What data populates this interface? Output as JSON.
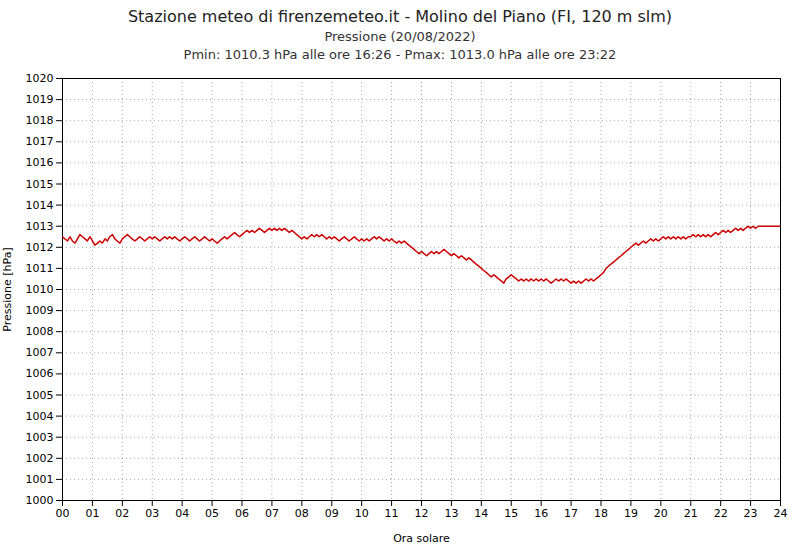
{
  "chart_data": {
    "type": "line",
    "title": "Stazione meteo di firenzemeteo.it - Molino del Piano (FI, 120 m slm)",
    "subtitle": "Pressione (20/08/2022)\nPmin: 1010.3 hPa alle ore 16:26 - Pmax: 1013.0 hPa alle ore 23:22",
    "x_label": "Ora solare",
    "y_label": "Pressione [hPa]",
    "xlim": [
      0,
      24
    ],
    "ylim": [
      1000,
      1020
    ],
    "xticks": [
      {
        "value": 0,
        "label": "00"
      },
      {
        "value": 1,
        "label": "01"
      },
      {
        "value": 2,
        "label": "02"
      },
      {
        "value": 3,
        "label": "03"
      },
      {
        "value": 4,
        "label": "04"
      },
      {
        "value": 5,
        "label": "05"
      },
      {
        "value": 6,
        "label": "06"
      },
      {
        "value": 7,
        "label": "07"
      },
      {
        "value": 8,
        "label": "08"
      },
      {
        "value": 9,
        "label": "09"
      },
      10,
      11,
      12,
      13,
      14,
      15,
      16,
      17,
      18,
      19,
      20,
      21,
      22,
      23,
      24
    ],
    "yticks": [
      1000,
      1001,
      1002,
      1003,
      1004,
      1005,
      1006,
      1007,
      1008,
      1009,
      1010,
      1011,
      1012,
      1013,
      1014,
      1015,
      1016,
      1017,
      1018,
      1019,
      1020
    ],
    "grid": true,
    "color": "#cc0000",
    "x": [
      0.0,
      0.08,
      0.17,
      0.25,
      0.33,
      0.42,
      0.5,
      0.58,
      0.67,
      0.75,
      0.83,
      0.92,
      1.0,
      1.08,
      1.17,
      1.25,
      1.33,
      1.42,
      1.5,
      1.58,
      1.67,
      1.75,
      1.83,
      1.92,
      2.0,
      2.08,
      2.17,
      2.25,
      2.33,
      2.42,
      2.5,
      2.58,
      2.67,
      2.75,
      2.83,
      2.92,
      3.0,
      3.08,
      3.17,
      3.25,
      3.33,
      3.42,
      3.5,
      3.58,
      3.67,
      3.75,
      3.83,
      3.92,
      4.0,
      4.08,
      4.17,
      4.25,
      4.33,
      4.42,
      4.5,
      4.58,
      4.67,
      4.75,
      4.83,
      4.92,
      5.0,
      5.08,
      5.17,
      5.25,
      5.33,
      5.42,
      5.5,
      5.58,
      5.67,
      5.75,
      5.83,
      5.92,
      6.0,
      6.08,
      6.17,
      6.25,
      6.33,
      6.42,
      6.5,
      6.58,
      6.67,
      6.75,
      6.83,
      6.92,
      7.0,
      7.08,
      7.17,
      7.25,
      7.33,
      7.42,
      7.5,
      7.58,
      7.67,
      7.75,
      7.83,
      7.92,
      8.0,
      8.08,
      8.17,
      8.25,
      8.33,
      8.42,
      8.5,
      8.58,
      8.67,
      8.75,
      8.83,
      8.92,
      9.0,
      9.08,
      9.17,
      9.25,
      9.33,
      9.42,
      9.5,
      9.58,
      9.67,
      9.75,
      9.83,
      9.92,
      10.0,
      10.08,
      10.17,
      10.25,
      10.33,
      10.42,
      10.5,
      10.58,
      10.67,
      10.75,
      10.83,
      10.92,
      11.0,
      11.08,
      11.17,
      11.25,
      11.33,
      11.42,
      11.5,
      11.58,
      11.67,
      11.75,
      11.83,
      11.92,
      12.0,
      12.08,
      12.17,
      12.25,
      12.33,
      12.42,
      12.5,
      12.58,
      12.67,
      12.75,
      12.83,
      12.92,
      13.0,
      13.08,
      13.17,
      13.25,
      13.33,
      13.42,
      13.5,
      13.58,
      13.67,
      13.75,
      13.83,
      13.92,
      14.0,
      14.08,
      14.17,
      14.25,
      14.33,
      14.42,
      14.5,
      14.58,
      14.67,
      14.75,
      14.83,
      14.92,
      15.0,
      15.08,
      15.17,
      15.25,
      15.33,
      15.42,
      15.5,
      15.58,
      15.67,
      15.75,
      15.83,
      15.92,
      16.0,
      16.08,
      16.17,
      16.25,
      16.33,
      16.42,
      16.5,
      16.58,
      16.67,
      16.75,
      16.83,
      16.92,
      17.0,
      17.08,
      17.17,
      17.25,
      17.33,
      17.42,
      17.5,
      17.58,
      17.67,
      17.75,
      17.83,
      17.92,
      18.0,
      18.08,
      18.17,
      18.25,
      18.33,
      18.42,
      18.5,
      18.58,
      18.67,
      18.75,
      18.83,
      18.92,
      19.0,
      19.08,
      19.17,
      19.25,
      19.33,
      19.42,
      19.5,
      19.58,
      19.67,
      19.75,
      19.83,
      19.92,
      20.0,
      20.08,
      20.17,
      20.25,
      20.33,
      20.42,
      20.5,
      20.58,
      20.67,
      20.75,
      20.83,
      20.92,
      21.0,
      21.08,
      21.17,
      21.25,
      21.33,
      21.42,
      21.5,
      21.58,
      21.67,
      21.75,
      21.83,
      21.92,
      22.0,
      22.08,
      22.17,
      22.25,
      22.33,
      22.42,
      22.5,
      22.58,
      22.67,
      22.75,
      22.83,
      22.92,
      23.0,
      23.08,
      23.17,
      23.25,
      23.33,
      23.42,
      23.5,
      23.58,
      23.67,
      23.75,
      23.83,
      23.92,
      24.0
    ],
    "values": [
      1012.5,
      1012.4,
      1012.3,
      1012.5,
      1012.3,
      1012.2,
      1012.4,
      1012.6,
      1012.5,
      1012.4,
      1012.3,
      1012.5,
      1012.3,
      1012.1,
      1012.2,
      1012.3,
      1012.2,
      1012.4,
      1012.3,
      1012.5,
      1012.6,
      1012.4,
      1012.3,
      1012.2,
      1012.4,
      1012.5,
      1012.6,
      1012.5,
      1012.4,
      1012.3,
      1012.4,
      1012.5,
      1012.4,
      1012.3,
      1012.4,
      1012.5,
      1012.4,
      1012.5,
      1012.4,
      1012.3,
      1012.4,
      1012.5,
      1012.4,
      1012.5,
      1012.4,
      1012.5,
      1012.4,
      1012.3,
      1012.4,
      1012.5,
      1012.4,
      1012.3,
      1012.4,
      1012.5,
      1012.4,
      1012.3,
      1012.4,
      1012.5,
      1012.4,
      1012.3,
      1012.4,
      1012.3,
      1012.2,
      1012.3,
      1012.4,
      1012.5,
      1012.4,
      1012.5,
      1012.6,
      1012.7,
      1012.6,
      1012.5,
      1012.6,
      1012.7,
      1012.8,
      1012.7,
      1012.8,
      1012.7,
      1012.8,
      1012.9,
      1012.8,
      1012.7,
      1012.8,
      1012.9,
      1012.8,
      1012.9,
      1012.8,
      1012.9,
      1012.8,
      1012.9,
      1012.8,
      1012.7,
      1012.8,
      1012.7,
      1012.6,
      1012.5,
      1012.4,
      1012.5,
      1012.4,
      1012.5,
      1012.6,
      1012.5,
      1012.6,
      1012.5,
      1012.6,
      1012.5,
      1012.4,
      1012.5,
      1012.4,
      1012.5,
      1012.4,
      1012.3,
      1012.4,
      1012.5,
      1012.4,
      1012.3,
      1012.4,
      1012.5,
      1012.4,
      1012.3,
      1012.4,
      1012.3,
      1012.4,
      1012.3,
      1012.4,
      1012.5,
      1012.4,
      1012.5,
      1012.4,
      1012.3,
      1012.4,
      1012.3,
      1012.4,
      1012.3,
      1012.2,
      1012.3,
      1012.2,
      1012.3,
      1012.2,
      1012.1,
      1012.0,
      1011.9,
      1011.8,
      1011.7,
      1011.8,
      1011.7,
      1011.6,
      1011.7,
      1011.8,
      1011.7,
      1011.8,
      1011.7,
      1011.8,
      1011.9,
      1011.8,
      1011.7,
      1011.6,
      1011.7,
      1011.6,
      1011.5,
      1011.6,
      1011.5,
      1011.4,
      1011.5,
      1011.4,
      1011.3,
      1011.2,
      1011.1,
      1011.0,
      1010.9,
      1010.8,
      1010.7,
      1010.6,
      1010.7,
      1010.6,
      1010.5,
      1010.4,
      1010.3,
      1010.5,
      1010.6,
      1010.7,
      1010.6,
      1010.5,
      1010.4,
      1010.5,
      1010.4,
      1010.5,
      1010.4,
      1010.5,
      1010.4,
      1010.5,
      1010.4,
      1010.5,
      1010.4,
      1010.5,
      1010.4,
      1010.3,
      1010.4,
      1010.5,
      1010.4,
      1010.5,
      1010.4,
      1010.5,
      1010.4,
      1010.3,
      1010.4,
      1010.3,
      1010.4,
      1010.3,
      1010.4,
      1010.5,
      1010.4,
      1010.5,
      1010.4,
      1010.5,
      1010.6,
      1010.7,
      1010.8,
      1011.0,
      1011.1,
      1011.2,
      1011.3,
      1011.4,
      1011.5,
      1011.6,
      1011.7,
      1011.8,
      1011.9,
      1012.0,
      1012.1,
      1012.2,
      1012.1,
      1012.2,
      1012.3,
      1012.2,
      1012.3,
      1012.4,
      1012.3,
      1012.4,
      1012.3,
      1012.4,
      1012.5,
      1012.4,
      1012.5,
      1012.4,
      1012.5,
      1012.4,
      1012.5,
      1012.4,
      1012.5,
      1012.4,
      1012.5,
      1012.5,
      1012.6,
      1012.5,
      1012.6,
      1012.5,
      1012.6,
      1012.5,
      1012.6,
      1012.5,
      1012.6,
      1012.7,
      1012.6,
      1012.7,
      1012.8,
      1012.7,
      1012.8,
      1012.7,
      1012.8,
      1012.9,
      1012.8,
      1012.9,
      1012.8,
      1012.9,
      1013.0,
      1012.9,
      1013.0,
      1012.9,
      1013.0,
      1013.0,
      1013.0,
      1013.0,
      1013.0,
      1013.0,
      1013.0,
      1013.0,
      1013.0,
      1013.0
    ]
  }
}
